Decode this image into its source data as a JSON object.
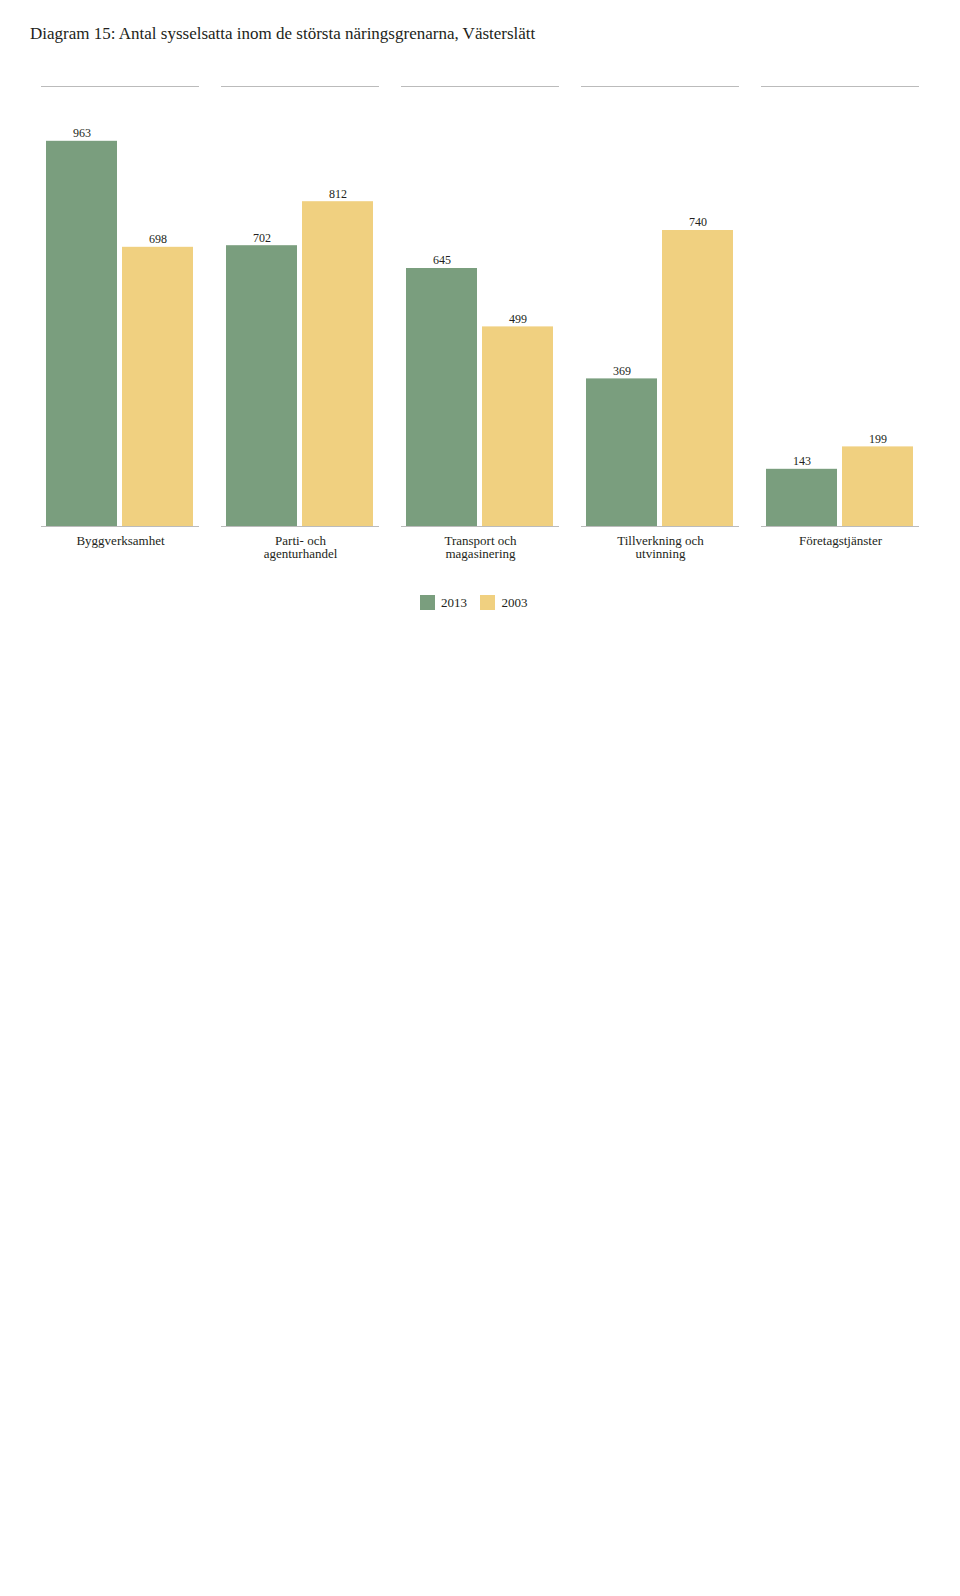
{
  "chart_data": {
    "type": "bar",
    "title": "Diagram 15: Antal sysselsatta inom de största näringsgrenarna, Västerslätt",
    "categories": [
      "Byggverksamhet",
      "Parti- och\nagenturhandel",
      "Transport och\nmagasinering",
      "Tillverkning och\nutvinning",
      "Företagstjänster"
    ],
    "series": [
      {
        "name": "2013",
        "color": "#7a9e7e",
        "values": [
          963,
          702,
          645,
          369,
          143
        ]
      },
      {
        "name": "2003",
        "color": "#f0d080",
        "values": [
          698,
          812,
          499,
          740,
          199
        ]
      }
    ],
    "ylim": [
      0,
      1100
    ],
    "tick_labels": "x",
    "data_labels": true,
    "legend": "bottom",
    "grid": false
  }
}
